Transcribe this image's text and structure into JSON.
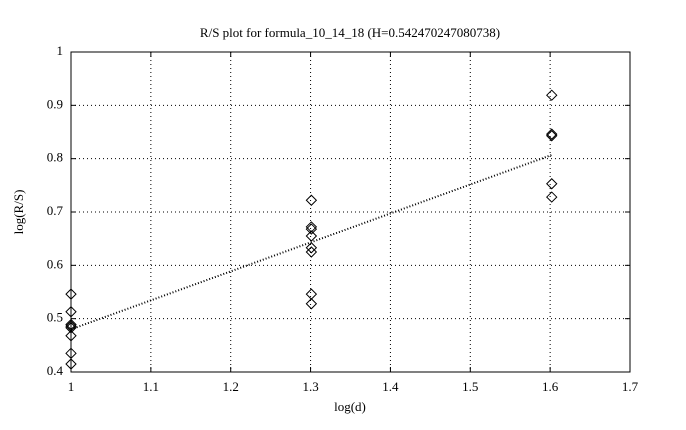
{
  "chart_data": {
    "type": "scatter",
    "title": "R/S plot for formula_10_14_18 (H=0.542470247080738)",
    "x_label": "log(d)",
    "y_label": "log(R/S)",
    "xlim": [
      1,
      1.7
    ],
    "ylim": [
      0.4,
      1
    ],
    "xticks": [
      1,
      1.1,
      1.2,
      1.3,
      1.4,
      1.5,
      1.6,
      1.7
    ],
    "yticks": [
      0.4,
      0.5,
      0.6,
      0.7,
      0.8,
      0.9,
      1
    ],
    "grid": true,
    "series": [
      {
        "color": "#000000",
        "marker": "diamond",
        "x": [
          1,
          1,
          1,
          1,
          1,
          1,
          1,
          1,
          1.301,
          1.301,
          1.301,
          1.301,
          1.301,
          1.301,
          1.301,
          1.301,
          1.602,
          1.602,
          1.602,
          1.602,
          1.602
        ],
        "values": [
          0.546,
          0.513,
          0.489,
          0.486,
          0.483,
          0.468,
          0.435,
          0.415,
          0.722,
          0.672,
          0.668,
          0.655,
          0.633,
          0.625,
          0.546,
          0.528,
          0.919,
          0.846,
          0.843,
          0.753,
          0.728
        ]
      },
      {
        "color": "#000000",
        "marker": "line-dotted",
        "x": [
          1,
          1.602
        ],
        "values": [
          0.48,
          0.807
        ]
      }
    ]
  }
}
